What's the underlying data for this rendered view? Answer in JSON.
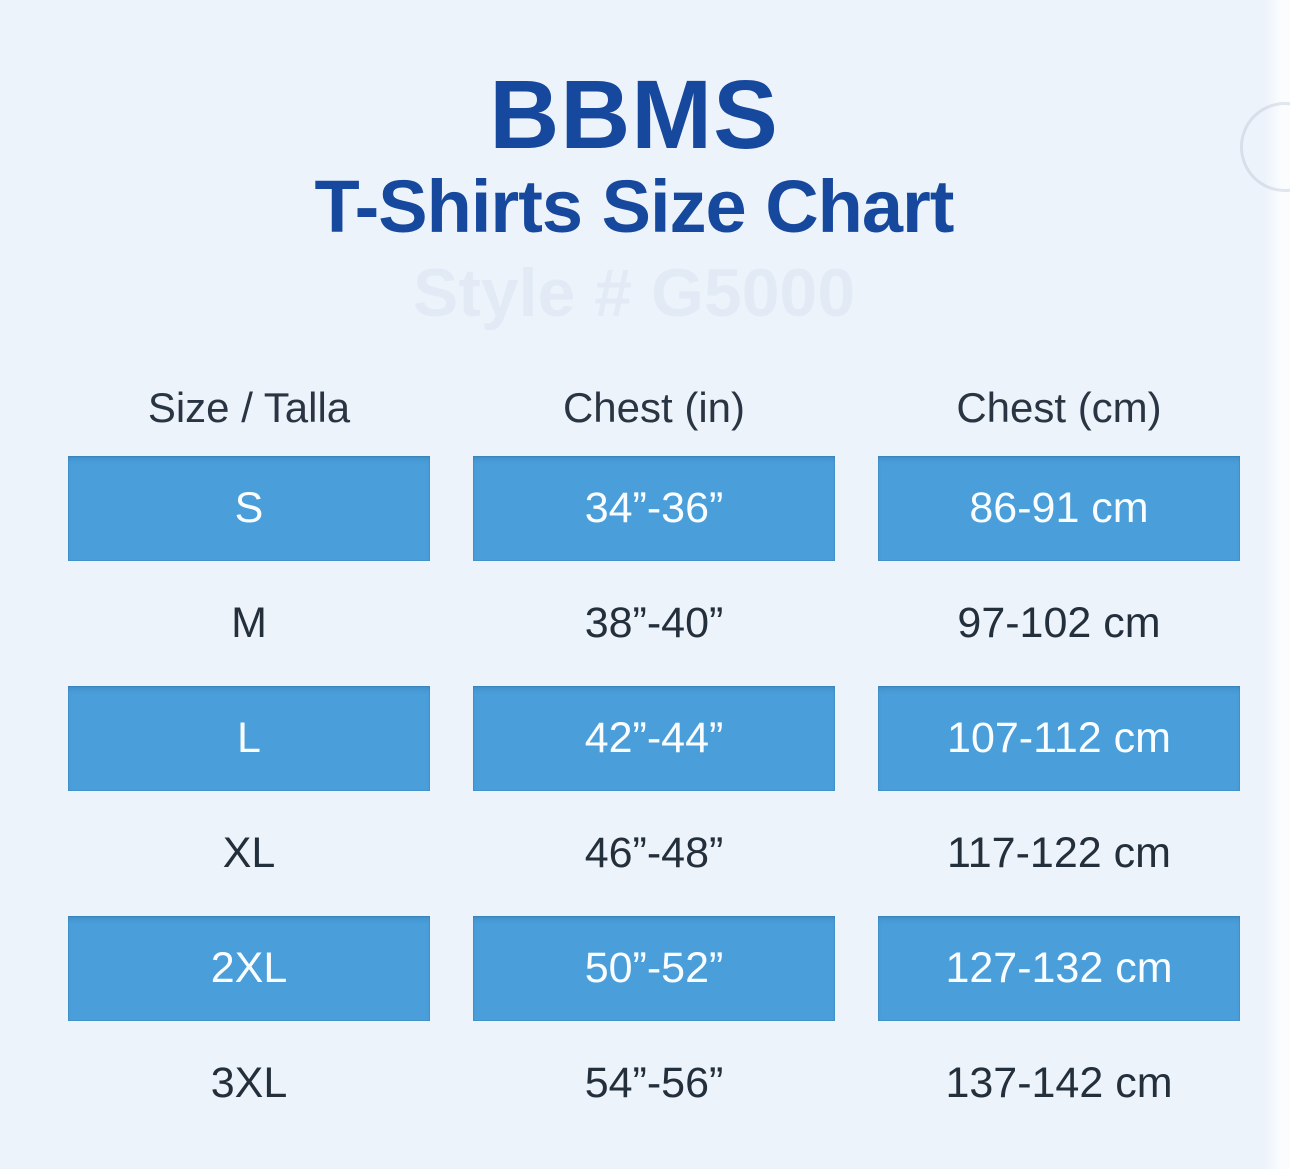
{
  "header": {
    "brand": "BBMS",
    "title": "T-Shirts Size Chart",
    "watermark": "Style # G5000"
  },
  "colors": {
    "background": "#edf3fb",
    "accent_blue": "#4a9eda",
    "title_blue": "#16489d",
    "text_dark": "#2a3543",
    "highlight_text": "#ffffff"
  },
  "chart_data": {
    "type": "table",
    "title": "BBMS T-Shirts Size Chart",
    "columns": [
      "Size / Talla",
      "Chest (in)",
      "Chest (cm)"
    ],
    "rows": [
      [
        "S",
        "34”-36”",
        "86-91 cm"
      ],
      [
        "M",
        "38”-40”",
        "97-102 cm"
      ],
      [
        "L",
        "42”-44”",
        "107-112 cm"
      ],
      [
        "XL",
        "46”-48”",
        "117-122 cm"
      ],
      [
        "2XL",
        "50”-52”",
        "127-132 cm"
      ],
      [
        "3XL",
        "54”-56”",
        "137-142 cm"
      ]
    ],
    "highlighted_rows": [
      0,
      2,
      4
    ],
    "layout": "alternating highlighted bars, no gridlines"
  }
}
